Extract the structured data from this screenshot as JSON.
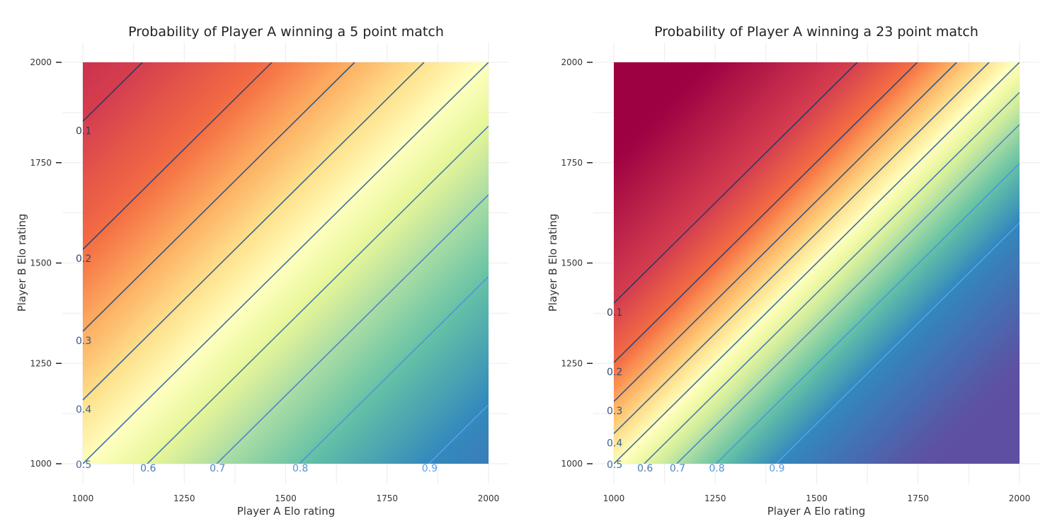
{
  "chart_data": [
    {
      "type": "heatmap",
      "title": "Probability of Player A winning a 5 point match",
      "xlabel": "Player A Elo rating",
      "ylabel": "Player B Elo rating",
      "xlim": [
        1000,
        2000
      ],
      "ylim": [
        1000,
        2000
      ],
      "xticks": [
        "1000",
        "1250",
        "1500",
        "1750",
        "2000"
      ],
      "yticks": [
        "1000",
        "1250",
        "1500",
        "1750",
        "2000"
      ],
      "colormap": "Spectral",
      "contour_levels": [
        {
          "label": "0.1",
          "offset": -853
        },
        {
          "label": "0.2",
          "offset": -534
        },
        {
          "label": "0.3",
          "offset": -330
        },
        {
          "label": "0.4",
          "offset": -159
        },
        {
          "label": "0.5",
          "offset": 0
        },
        {
          "label": "0.6",
          "offset": 159
        },
        {
          "label": "0.7",
          "offset": 330
        },
        {
          "label": "0.8",
          "offset": 534
        },
        {
          "label": "0.9",
          "offset": 853
        }
      ],
      "grid": true
    },
    {
      "type": "heatmap",
      "title": "Probability of Player A winning a 23 point match",
      "xlabel": "Player A Elo rating",
      "ylabel": "Player B Elo rating",
      "xlim": [
        1000,
        2000
      ],
      "ylim": [
        1000,
        2000
      ],
      "xticks": [
        "1000",
        "1250",
        "1500",
        "1750",
        "2000"
      ],
      "yticks": [
        "1000",
        "1250",
        "1500",
        "1750",
        "2000"
      ],
      "colormap": "Spectral",
      "contour_levels": [
        {
          "label": "0.1",
          "offset": -400
        },
        {
          "label": "0.2",
          "offset": -252
        },
        {
          "label": "0.3",
          "offset": -155
        },
        {
          "label": "0.4",
          "offset": -75
        },
        {
          "label": "0.5",
          "offset": 0
        },
        {
          "label": "0.6",
          "offset": 75
        },
        {
          "label": "0.7",
          "offset": 155
        },
        {
          "label": "0.8",
          "offset": 252
        },
        {
          "label": "0.9",
          "offset": 400
        }
      ],
      "grid": true
    }
  ]
}
